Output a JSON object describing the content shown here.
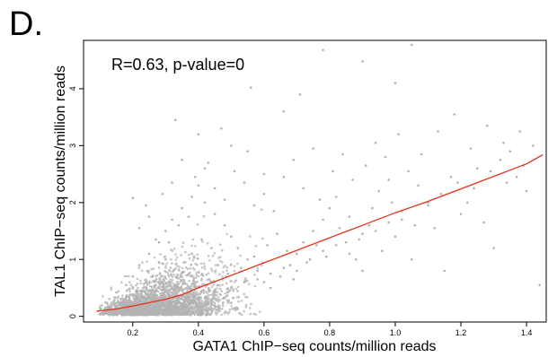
{
  "panel_label": "D.",
  "chart_data": {
    "type": "scatter",
    "title": "",
    "annotation": "R=0.63, p-value=0",
    "xlabel": "GATA1 ChIP−seq counts/million reads",
    "ylabel": "TAL1 ChIP−seq counts/million reads",
    "xlim": [
      0.05,
      1.46
    ],
    "ylim": [
      -0.1,
      4.85
    ],
    "xticks": [
      "0.2",
      "0.4",
      "0.6",
      "0.8",
      "1.0",
      "1.2",
      "1.4"
    ],
    "yticks": [
      "0",
      "1",
      "2",
      "3",
      "4"
    ],
    "grid": false,
    "point_color": "#b3b3b3",
    "fit_line_color": "#e8321e",
    "fit_line": {
      "x": [
        0.09,
        0.15,
        0.2,
        0.25,
        0.3,
        0.35,
        0.4,
        0.5,
        0.6,
        0.7,
        0.8,
        0.9,
        1.0,
        1.1,
        1.2,
        1.3,
        1.4,
        1.45
      ],
      "y": [
        0.09,
        0.13,
        0.18,
        0.24,
        0.3,
        0.38,
        0.5,
        0.72,
        0.94,
        1.16,
        1.38,
        1.6,
        1.82,
        2.02,
        2.24,
        2.46,
        2.68,
        2.84
      ]
    },
    "points": [
      [
        0.15,
        0.42
      ],
      [
        0.18,
        0.55
      ],
      [
        0.2,
        0.7
      ],
      [
        0.22,
        0.9
      ],
      [
        0.25,
        1.1
      ],
      [
        0.28,
        1.3
      ],
      [
        0.3,
        1.5
      ],
      [
        0.32,
        1.7
      ],
      [
        0.35,
        1.9
      ],
      [
        0.38,
        2.1
      ],
      [
        0.4,
        2.3
      ],
      [
        0.42,
        2.0
      ],
      [
        0.45,
        1.8
      ],
      [
        0.48,
        1.6
      ],
      [
        0.5,
        1.4
      ],
      [
        0.52,
        1.2
      ],
      [
        0.55,
        1.0
      ],
      [
        0.58,
        0.8
      ],
      [
        0.6,
        0.6
      ],
      [
        0.62,
        0.5
      ],
      [
        0.65,
        0.7
      ],
      [
        0.68,
        0.9
      ],
      [
        0.7,
        1.1
      ],
      [
        0.72,
        1.3
      ],
      [
        0.75,
        1.5
      ],
      [
        0.78,
        1.7
      ],
      [
        0.8,
        1.9
      ],
      [
        0.82,
        2.1
      ],
      [
        0.85,
        1.3
      ],
      [
        0.88,
        1.0
      ],
      [
        0.9,
        0.8
      ],
      [
        0.92,
        1.6
      ],
      [
        0.95,
        2.2
      ],
      [
        0.98,
        2.4
      ],
      [
        1.0,
        1.4
      ],
      [
        1.05,
        1.0
      ],
      [
        1.1,
        2.0
      ],
      [
        1.15,
        0.8
      ],
      [
        1.2,
        1.8
      ],
      [
        1.25,
        2.6
      ],
      [
        1.3,
        1.2
      ],
      [
        1.35,
        2.9
      ],
      [
        1.4,
        2.2
      ],
      [
        1.44,
        0.55
      ],
      [
        0.43,
        2.7
      ],
      [
        0.47,
        3.3
      ],
      [
        0.5,
        3.0
      ],
      [
        0.55,
        2.9
      ],
      [
        0.56,
        4.02
      ],
      [
        0.6,
        2.5
      ],
      [
        0.66,
        3.6
      ],
      [
        0.71,
        3.9
      ],
      [
        0.78,
        4.68
      ],
      [
        0.9,
        4.48
      ],
      [
        1.0,
        4.1
      ],
      [
        1.05,
        4.77
      ],
      [
        0.33,
        3.45
      ],
      [
        0.4,
        3.2
      ],
      [
        0.31,
        1.3
      ],
      [
        0.3,
        1.0
      ],
      [
        0.28,
        0.95
      ],
      [
        0.26,
        0.7
      ],
      [
        0.24,
        0.6
      ],
      [
        0.27,
        0.55
      ],
      [
        0.21,
        0.35
      ],
      [
        0.23,
        0.45
      ],
      [
        0.19,
        0.3
      ],
      [
        0.17,
        0.25
      ],
      [
        0.16,
        0.2
      ],
      [
        0.14,
        0.12
      ],
      [
        0.13,
        0.08
      ],
      [
        0.12,
        0.05
      ],
      [
        0.36,
        0.95
      ],
      [
        0.38,
        1.1
      ],
      [
        0.41,
        1.35
      ],
      [
        0.44,
        1.2
      ],
      [
        0.46,
        0.9
      ],
      [
        0.49,
        0.75
      ],
      [
        0.53,
        0.85
      ],
      [
        0.57,
        1.05
      ],
      [
        0.61,
        1.25
      ],
      [
        0.64,
        1.45
      ],
      [
        0.67,
        1.15
      ],
      [
        0.69,
        0.65
      ],
      [
        0.73,
        0.95
      ],
      [
        0.76,
        1.25
      ],
      [
        0.79,
        1.05
      ],
      [
        0.83,
        1.55
      ],
      [
        0.86,
        1.75
      ],
      [
        0.89,
        1.35
      ],
      [
        0.93,
        1.9
      ],
      [
        0.96,
        1.15
      ],
      [
        0.99,
        2.0
      ],
      [
        1.02,
        1.7
      ],
      [
        1.07,
        2.3
      ],
      [
        1.12,
        1.55
      ],
      [
        1.17,
        2.45
      ],
      [
        1.22,
        2.0
      ],
      [
        1.27,
        1.65
      ],
      [
        1.32,
        2.75
      ],
      [
        1.37,
        2.45
      ],
      [
        1.42,
        3.0
      ],
      [
        0.34,
        1.6
      ],
      [
        0.37,
        1.75
      ],
      [
        0.39,
        2.45
      ],
      [
        0.42,
        2.6
      ],
      [
        0.45,
        2.25
      ],
      [
        0.48,
        2.05
      ],
      [
        0.51,
        2.55
      ],
      [
        0.54,
        2.35
      ],
      [
        0.57,
        1.95
      ],
      [
        0.6,
        2.15
      ],
      [
        0.63,
        1.85
      ],
      [
        0.66,
        2.45
      ],
      [
        0.69,
        2.75
      ],
      [
        0.72,
        2.25
      ],
      [
        0.75,
        2.95
      ],
      [
        0.77,
        2.05
      ],
      [
        0.81,
        2.55
      ],
      [
        0.84,
        2.85
      ],
      [
        0.87,
        2.4
      ],
      [
        0.91,
        2.65
      ],
      [
        0.94,
        3.05
      ],
      [
        0.97,
        2.8
      ],
      [
        1.01,
        3.2
      ],
      [
        1.04,
        2.55
      ],
      [
        1.08,
        2.85
      ],
      [
        1.13,
        3.25
      ],
      [
        1.18,
        3.55
      ],
      [
        1.23,
        2.95
      ],
      [
        1.28,
        3.35
      ],
      [
        1.33,
        3.05
      ],
      [
        1.38,
        3.25
      ],
      [
        0.22,
        1.55
      ],
      [
        0.25,
        1.75
      ],
      [
        0.29,
        2.15
      ],
      [
        0.32,
        2.35
      ],
      [
        0.35,
        2.75
      ],
      [
        0.2,
        2.08
      ],
      [
        0.24,
        1.95
      ],
      [
        0.27,
        1.35
      ],
      [
        0.46,
        0.55
      ],
      [
        0.5,
        0.5
      ],
      [
        0.54,
        0.6
      ],
      [
        0.58,
        0.65
      ],
      [
        0.62,
        0.75
      ],
      [
        0.66,
        0.85
      ],
      [
        0.7,
        0.8
      ],
      [
        0.74,
        1.0
      ],
      [
        0.78,
        1.15
      ],
      [
        0.82,
        1.25
      ],
      [
        0.86,
        1.1
      ],
      [
        0.9,
        1.45
      ],
      [
        0.94,
        1.5
      ],
      [
        0.98,
        1.65
      ],
      [
        1.02,
        1.85
      ],
      [
        1.06,
        1.6
      ],
      [
        1.1,
        1.95
      ],
      [
        1.14,
        2.15
      ],
      [
        1.19,
        2.35
      ],
      [
        1.24,
        2.25
      ],
      [
        1.29,
        2.55
      ],
      [
        1.34,
        2.35
      ],
      [
        1.39,
        2.65
      ]
    ],
    "dense_cloud": {
      "description_free": true,
      "x_range": [
        0.09,
        0.55
      ],
      "center_x": 0.24,
      "center_y": 0.25
    }
  }
}
